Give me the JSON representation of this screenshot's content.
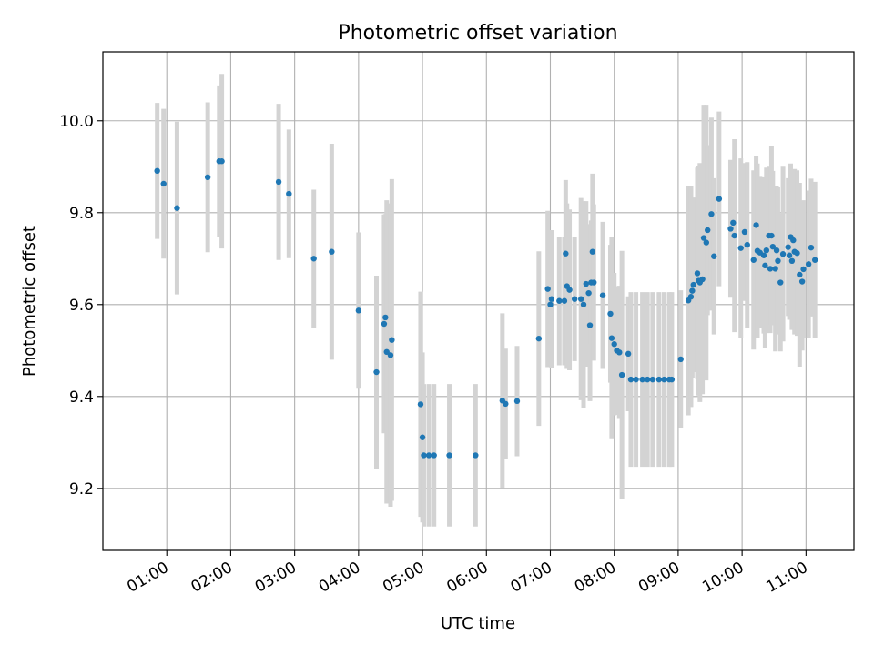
{
  "chart_data": {
    "type": "scatter",
    "title": "Photometric offset variation",
    "xlabel": "UTC time",
    "ylabel": "Photometric offset",
    "grid": true,
    "xlim": [
      0.0,
      11.75
    ],
    "ylim": [
      9.065,
      10.15
    ],
    "x_ticks": [
      1,
      2,
      3,
      4,
      5,
      6,
      7,
      8,
      9,
      10,
      11
    ],
    "x_tick_labels": [
      "01:00",
      "02:00",
      "03:00",
      "04:00",
      "05:00",
      "06:00",
      "07:00",
      "08:00",
      "09:00",
      "10:00",
      "11:00"
    ],
    "y_ticks": [
      9.2,
      9.4,
      9.6,
      9.8,
      10.0
    ],
    "y_tick_labels": [
      "9.2",
      "9.4",
      "9.6",
      "9.8",
      "10.0"
    ],
    "colors": {
      "point": "#1f77b4",
      "errorbar": "#d3d3d3",
      "grid": "#b0b0b0",
      "axis": "#000000"
    },
    "series": [
      {
        "name": "offset",
        "x": [
          0.85,
          0.95,
          1.16,
          1.64,
          1.82,
          1.86,
          2.75,
          2.91,
          3.3,
          3.58,
          4.0,
          4.28,
          4.4,
          4.42,
          4.44,
          4.5,
          4.52,
          4.97,
          5.0,
          5.02,
          5.1,
          5.18,
          5.42,
          5.83,
          6.25,
          6.3,
          6.48,
          6.82,
          6.96,
          7.0,
          7.02,
          7.14,
          7.22,
          7.24,
          7.26,
          7.3,
          7.38,
          7.48,
          7.52,
          7.56,
          7.6,
          7.62,
          7.64,
          7.66,
          7.68,
          7.82,
          7.94,
          7.96,
          8.0,
          8.04,
          8.08,
          8.12,
          8.22,
          8.26,
          8.34,
          8.44,
          8.52,
          8.6,
          8.7,
          8.78,
          8.86,
          8.9,
          9.04,
          9.16,
          9.2,
          9.22,
          9.24,
          9.3,
          9.32,
          9.34,
          9.38,
          9.4,
          9.44,
          9.46,
          9.52,
          9.56,
          9.64,
          9.82,
          9.86,
          9.88,
          9.98,
          10.04,
          10.08,
          10.18,
          10.22,
          10.24,
          10.28,
          10.34,
          10.36,
          10.38,
          10.42,
          10.44,
          10.46,
          10.48,
          10.52,
          10.54,
          10.56,
          10.6,
          10.64,
          10.72,
          10.74,
          10.76,
          10.78,
          10.8,
          10.82,
          10.86,
          10.9,
          10.94,
          10.96,
          11.04,
          11.08,
          11.14
        ],
        "y": [
          9.891,
          9.863,
          9.81,
          9.877,
          9.912,
          9.912,
          9.867,
          9.841,
          9.7,
          9.715,
          9.587,
          9.453,
          9.558,
          9.572,
          9.497,
          9.49,
          9.523,
          9.383,
          9.311,
          9.272,
          9.272,
          9.272,
          9.272,
          9.272,
          9.391,
          9.384,
          9.39,
          9.526,
          9.634,
          9.6,
          9.612,
          9.608,
          9.608,
          9.711,
          9.64,
          9.632,
          9.612,
          9.612,
          9.6,
          9.645,
          9.625,
          9.555,
          9.648,
          9.715,
          9.648,
          9.62,
          9.58,
          9.527,
          9.514,
          9.5,
          9.496,
          9.447,
          9.493,
          9.437,
          9.437,
          9.437,
          9.437,
          9.437,
          9.437,
          9.437,
          9.437,
          9.437,
          9.481,
          9.609,
          9.617,
          9.63,
          9.643,
          9.668,
          9.652,
          9.648,
          9.655,
          9.745,
          9.735,
          9.762,
          9.797,
          9.705,
          9.83,
          9.765,
          9.778,
          9.75,
          9.723,
          9.758,
          9.73,
          9.697,
          9.773,
          9.717,
          9.713,
          9.707,
          9.685,
          9.718,
          9.75,
          9.678,
          9.75,
          9.726,
          9.678,
          9.718,
          9.695,
          9.648,
          9.71,
          9.725,
          9.707,
          9.747,
          9.695,
          9.74,
          9.715,
          9.712,
          9.665,
          9.65,
          9.677,
          9.688,
          9.724,
          9.697
        ],
        "yerr": [
          0.148,
          0.163,
          0.188,
          0.163,
          0.165,
          0.19,
          0.17,
          0.14,
          0.15,
          0.235,
          0.17,
          0.21,
          0.238,
          0.225,
          0.33,
          0.33,
          0.35,
          0.245,
          0.185,
          0.155,
          0.155,
          0.155,
          0.155,
          0.155,
          0.19,
          0.12,
          0.12,
          0.19,
          0.17,
          0.13,
          0.15,
          0.14,
          0.14,
          0.16,
          0.18,
          0.175,
          0.135,
          0.22,
          0.225,
          0.18,
          0.15,
          0.165,
          0.135,
          0.17,
          0.17,
          0.16,
          0.15,
          0.22,
          0.155,
          0.14,
          0.145,
          0.27,
          0.125,
          0.19,
          0.19,
          0.19,
          0.19,
          0.19,
          0.19,
          0.19,
          0.19,
          0.19,
          0.15,
          0.25,
          0.24,
          0.19,
          0.19,
          0.23,
          0.25,
          0.26,
          0.25,
          0.29,
          0.3,
          0.185,
          0.21,
          0.17,
          0.19,
          0.15,
          0.13,
          0.21,
          0.195,
          0.15,
          0.18,
          0.195,
          0.15,
          0.19,
          0.165,
          0.17,
          0.18,
          0.18,
          0.15,
          0.14,
          0.195,
          0.165,
          0.18,
          0.14,
          0.16,
          0.15,
          0.19,
          0.15,
          0.14,
          0.16,
          0.15,
          0.15,
          0.18,
          0.18,
          0.2,
          0.15,
          0.15,
          0.16,
          0.15,
          0.17
        ]
      }
    ]
  }
}
